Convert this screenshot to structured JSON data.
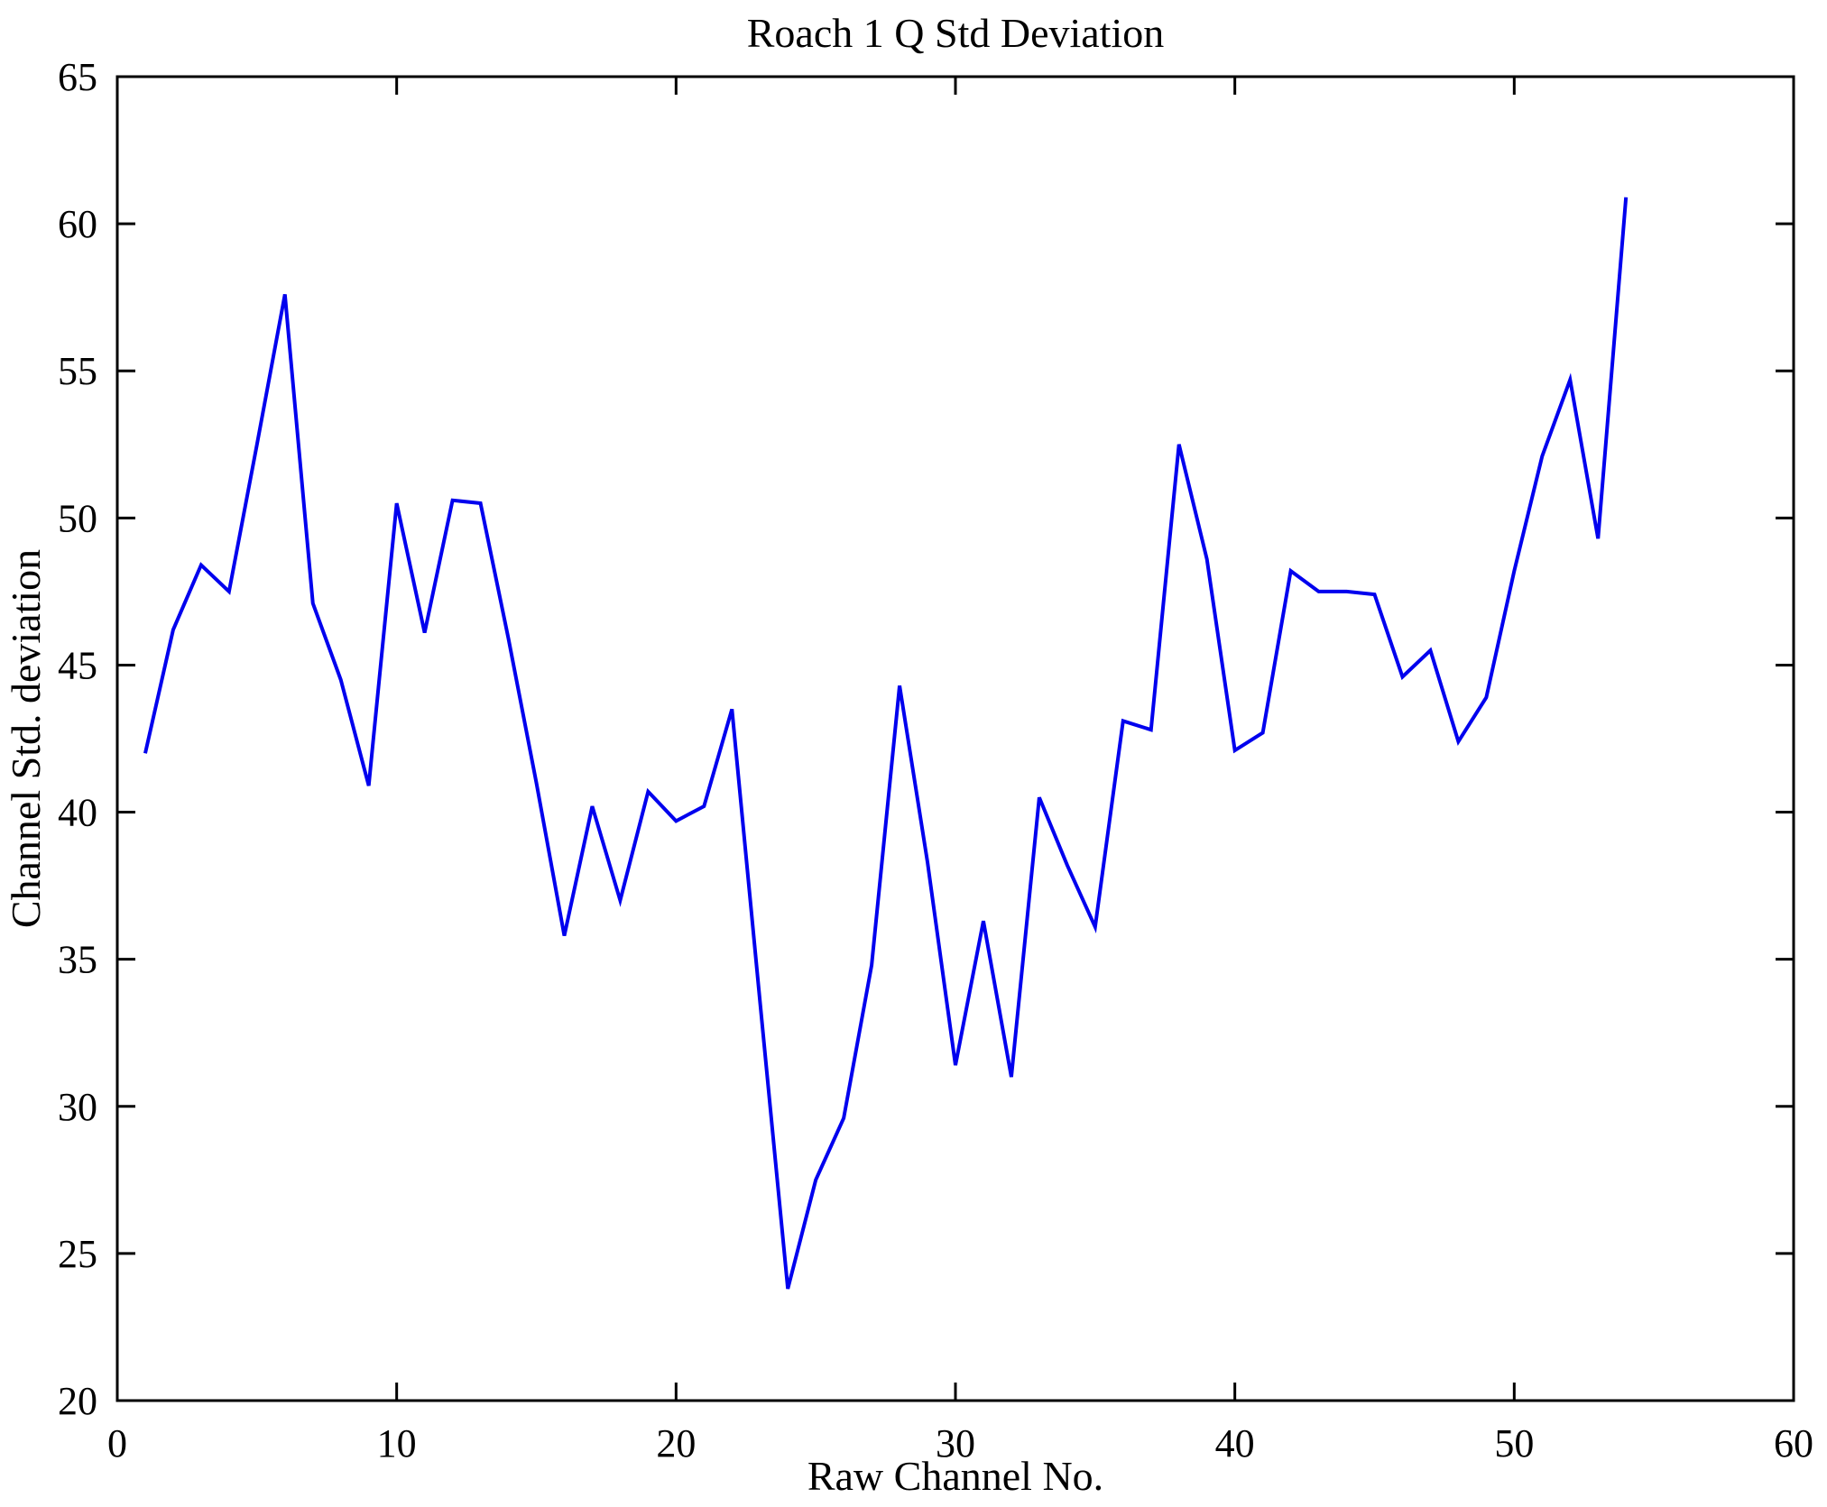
{
  "chart_data": {
    "type": "line",
    "title": "Roach 1 Q Std Deviation",
    "xlabel": "Raw Channel No.",
    "ylabel": "Channel Std. deviation",
    "xlim": [
      0,
      60
    ],
    "ylim": [
      20,
      65
    ],
    "xticks": [
      0,
      10,
      20,
      30,
      40,
      50,
      60
    ],
    "yticks": [
      20,
      25,
      30,
      35,
      40,
      45,
      50,
      55,
      60,
      65
    ],
    "grid": false,
    "legend": null,
    "box": true,
    "tick_direction": "in",
    "line_color": "#0000EE",
    "axis_color": "#000000",
    "background_color": "#ffffff",
    "x": [
      1,
      2,
      3,
      4,
      5,
      6,
      7,
      8,
      9,
      10,
      11,
      12,
      13,
      14,
      15,
      16,
      17,
      18,
      19,
      20,
      21,
      22,
      23,
      24,
      25,
      26,
      27,
      28,
      29,
      30,
      31,
      32,
      33,
      34,
      35,
      36,
      37,
      38,
      39,
      40,
      41,
      42,
      43,
      44,
      45,
      46,
      47,
      48,
      49,
      50,
      51,
      52,
      53,
      54
    ],
    "values": [
      42.0,
      46.2,
      48.4,
      47.5,
      52.5,
      57.6,
      47.1,
      44.5,
      40.9,
      50.5,
      46.1,
      50.6,
      50.5,
      45.9,
      41.0,
      35.8,
      40.2,
      37.0,
      40.7,
      39.7,
      40.2,
      43.5,
      33.6,
      23.8,
      27.5,
      29.6,
      34.8,
      44.3,
      38.3,
      31.4,
      36.3,
      31.0,
      40.5,
      38.2,
      36.1,
      43.1,
      42.8,
      52.5,
      48.6,
      42.1,
      42.7,
      48.2,
      47.5,
      47.5,
      47.4,
      44.6,
      45.5,
      42.4,
      43.9,
      48.2,
      52.1,
      54.7,
      49.3,
      60.9
    ]
  }
}
